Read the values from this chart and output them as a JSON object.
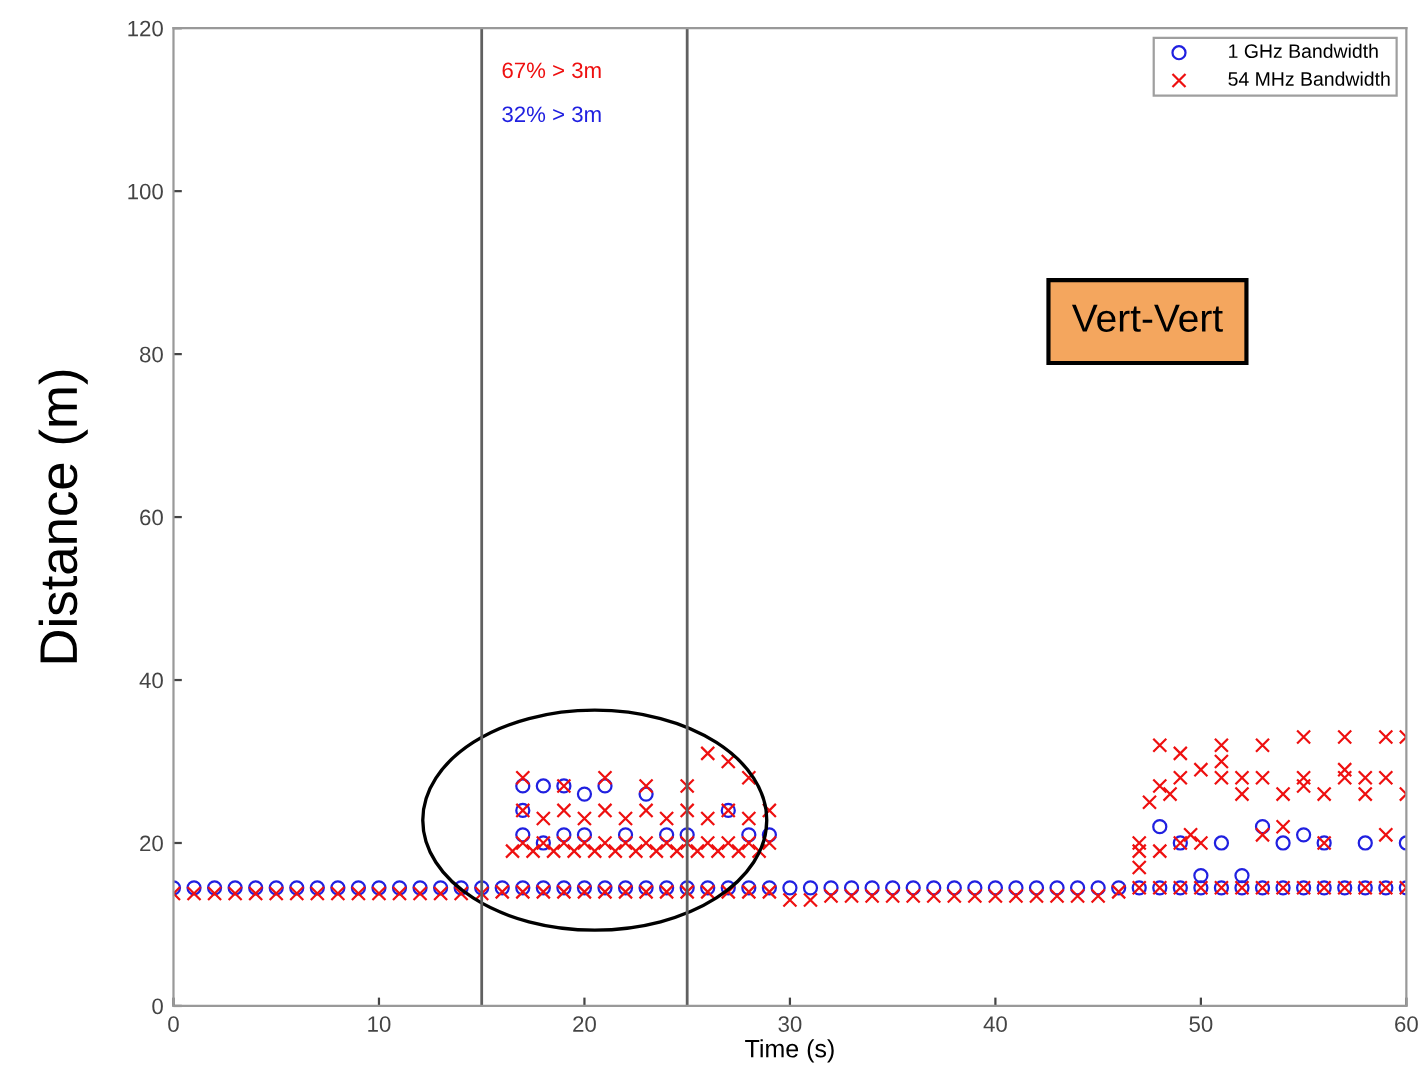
{
  "chart_data": {
    "type": "scatter",
    "xlabel": "Time (s)",
    "ylabel": "Distance (m)",
    "xlim": [
      0,
      60
    ],
    "ylim": [
      0,
      120
    ],
    "xticks": [
      0,
      10,
      20,
      30,
      40,
      50,
      60
    ],
    "yticks": [
      0,
      20,
      40,
      60,
      80,
      100,
      120
    ],
    "legend": "top right",
    "annotations": [
      "67% > 3m",
      "32% > 3m",
      "Vert-Vert"
    ],
    "ref_lines": [
      {
        "axis": "x",
        "value": 15,
        "color": "#606060"
      },
      {
        "axis": "x",
        "value": 25,
        "color": "#606060"
      }
    ],
    "series": [
      {
        "name": "1 GHz Bandwidth",
        "color": "#2020e0",
        "marker": "circle",
        "x": [
          0,
          1,
          2,
          3,
          4,
          5,
          6,
          7,
          8,
          9,
          10,
          11,
          12,
          13,
          14,
          15,
          16,
          17,
          18,
          19,
          20,
          21,
          22,
          23,
          24,
          25,
          26,
          27,
          28,
          29,
          30,
          31,
          32,
          33,
          34,
          35,
          36,
          37,
          38,
          39,
          40,
          41,
          42,
          43,
          44,
          45,
          46,
          47,
          48,
          49,
          50,
          51,
          52,
          53,
          54,
          55,
          56,
          57,
          58,
          59,
          60,
          17,
          18,
          19,
          20,
          21,
          17,
          18,
          19,
          20,
          22,
          24,
          25,
          27,
          28,
          29,
          17,
          23,
          48,
          49,
          50,
          51,
          52,
          53,
          54,
          55,
          56,
          58,
          60
        ],
        "values": [
          14.5,
          14.5,
          14.5,
          14.5,
          14.5,
          14.5,
          14.5,
          14.5,
          14.5,
          14.5,
          14.5,
          14.5,
          14.5,
          14.5,
          14.5,
          14.5,
          14.5,
          14.5,
          14.5,
          14.5,
          14.5,
          14.5,
          14.5,
          14.5,
          14.5,
          14.5,
          14.5,
          14.5,
          14.5,
          14.5,
          14.5,
          14.5,
          14.5,
          14.5,
          14.5,
          14.5,
          14.5,
          14.5,
          14.5,
          14.5,
          14.5,
          14.5,
          14.5,
          14.5,
          14.5,
          14.5,
          14.5,
          14.5,
          14.5,
          14.5,
          14.5,
          14.5,
          14.5,
          14.5,
          14.5,
          14.5,
          14.5,
          14.5,
          14.5,
          14.5,
          14.5,
          27,
          27,
          27,
          26,
          27,
          21,
          20,
          21,
          21,
          21,
          21,
          21,
          24,
          21,
          21,
          24,
          26,
          22,
          20,
          16,
          20,
          16,
          22,
          20,
          21,
          20,
          20,
          20
        ]
      },
      {
        "name": "54 MHz Bandwidth",
        "color": "#ee1010",
        "marker": "cross",
        "x": [
          0,
          1,
          2,
          3,
          4,
          5,
          6,
          7,
          8,
          9,
          10,
          11,
          12,
          13,
          14,
          15,
          16,
          17,
          18,
          19,
          20,
          21,
          22,
          23,
          24,
          25,
          26,
          27,
          28,
          29,
          30,
          31,
          32,
          33,
          34,
          35,
          36,
          37,
          38,
          39,
          40,
          41,
          42,
          43,
          44,
          45,
          46,
          47,
          48,
          49,
          50,
          51,
          52,
          53,
          54,
          55,
          56,
          57,
          58,
          59,
          60,
          16.5,
          17,
          17.5,
          18,
          18.5,
          19,
          19.5,
          20,
          20.5,
          21,
          21.5,
          22,
          22.5,
          23,
          23.5,
          24,
          24.5,
          25,
          25.5,
          26,
          26.5,
          27,
          27.5,
          28,
          28.5,
          29,
          17,
          18,
          19,
          20,
          21,
          22,
          23,
          24,
          25,
          26,
          27,
          28,
          29,
          17,
          19,
          21,
          23,
          25,
          26,
          27,
          28,
          47,
          47.5,
          48,
          48.5,
          49,
          49.5,
          50,
          51,
          52,
          53,
          54,
          55,
          56,
          57,
          58,
          59,
          60,
          47,
          48,
          49,
          50,
          51,
          52,
          53,
          54,
          55,
          56,
          57,
          58,
          59,
          60,
          47,
          48,
          49,
          51,
          53,
          55,
          57,
          59
        ],
        "values": [
          13.8,
          13.8,
          13.8,
          13.8,
          13.8,
          13.8,
          13.8,
          13.8,
          13.8,
          13.8,
          13.8,
          13.8,
          13.8,
          13.8,
          13.8,
          13.8,
          14,
          14,
          14,
          14,
          14,
          14,
          14,
          14,
          14,
          14,
          14,
          14,
          14,
          14,
          13,
          13,
          13.5,
          13.5,
          13.5,
          13.5,
          13.5,
          13.5,
          13.5,
          13.5,
          13.5,
          13.5,
          13.5,
          13.5,
          13.5,
          13.5,
          14,
          14.5,
          14.5,
          14.5,
          14.5,
          14.5,
          14.5,
          14.5,
          14.5,
          14.5,
          14.5,
          14.5,
          14.5,
          14.5,
          14.5,
          19,
          20,
          19,
          20,
          19,
          20,
          19,
          20,
          19,
          20,
          19,
          20,
          19,
          20,
          19,
          20,
          19,
          20,
          19,
          20,
          19,
          20,
          19,
          20,
          19,
          20,
          24,
          23,
          24,
          23,
          24,
          23,
          24,
          23,
          24,
          23,
          24,
          23,
          24,
          28,
          27,
          28,
          27,
          27,
          31,
          30,
          28,
          20,
          25,
          19,
          26,
          20,
          21,
          29,
          28,
          26,
          28,
          26,
          27,
          26,
          28,
          26,
          28,
          26,
          19,
          27,
          28,
          20,
          30,
          28,
          21,
          22,
          28,
          20,
          29,
          28,
          21,
          33,
          17,
          32,
          31,
          32,
          32,
          33,
          33,
          33
        ]
      }
    ]
  }
}
